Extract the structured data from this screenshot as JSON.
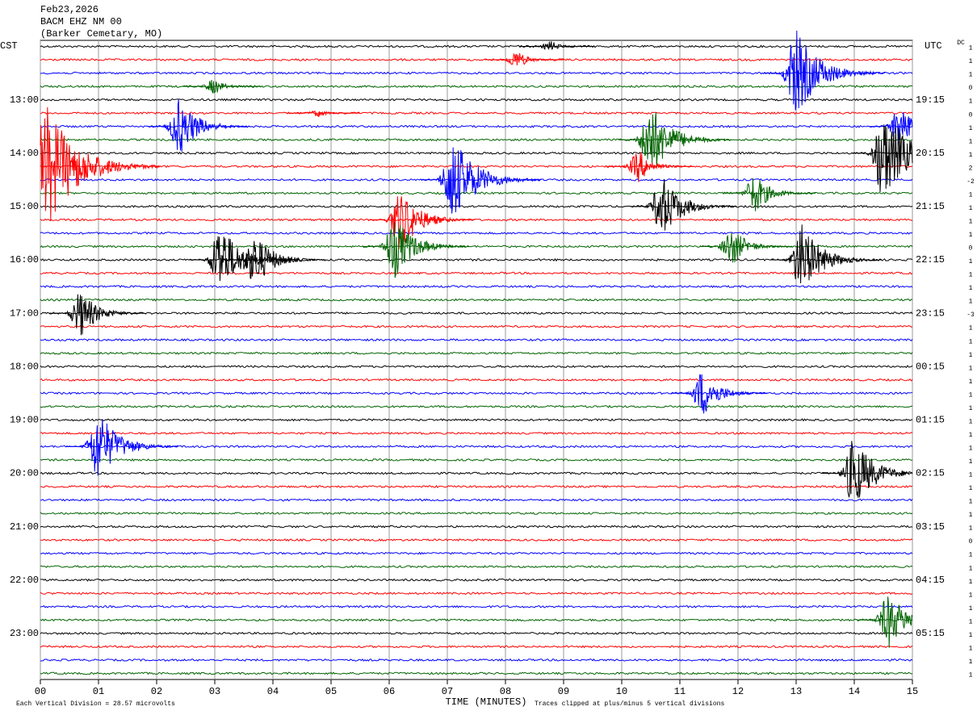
{
  "chart_data": {
    "type": "helicorder",
    "title": [
      "Feb23,2026",
      "BACM EHZ NM 00",
      "(Barker Cemetary, MO)"
    ],
    "left_timezone": "CST",
    "right_timezone": "UTC",
    "dc_header": "DC",
    "trace_colors": [
      "#000000",
      "#ff0000",
      "#0000ff",
      "#006400"
    ],
    "cst_labels": [
      "13:00",
      "14:00",
      "15:00",
      "16:00",
      "17:00",
      "18:00",
      "19:00",
      "20:00",
      "21:00",
      "22:00",
      "23:00"
    ],
    "utc_labels": [
      "19:15",
      "20:15",
      "21:15",
      "22:15",
      "23:15",
      "00:15",
      "01:15",
      "02:15",
      "03:15",
      "04:15",
      "05:15"
    ],
    "dc_offsets": [
      1,
      1,
      1,
      0,
      1,
      0,
      1,
      1,
      1,
      2,
      -2,
      1,
      1,
      1,
      1,
      0,
      1,
      1,
      1,
      1,
      -3,
      1,
      1,
      1,
      1,
      1,
      1,
      1,
      1,
      1,
      1,
      1,
      1,
      1,
      1,
      1,
      1,
      0,
      1,
      1,
      1,
      1,
      1,
      1,
      1,
      1,
      1,
      1
    ],
    "xlim": [
      0,
      15
    ],
    "xticks": [
      {
        "value": 0,
        "label": "00"
      },
      {
        "value": 1,
        "label": "01"
      },
      {
        "value": 2,
        "label": "02"
      },
      {
        "value": 3,
        "label": "03"
      },
      {
        "value": 4,
        "label": "04"
      },
      {
        "value": 5,
        "label": "05"
      },
      {
        "value": 6,
        "label": "06"
      },
      {
        "value": 7,
        "label": "07"
      },
      {
        "value": 8,
        "label": "08"
      },
      {
        "value": 9,
        "label": "09"
      },
      {
        "value": 10,
        "label": "10"
      },
      {
        "value": 11,
        "label": "11"
      },
      {
        "value": 12,
        "label": "12"
      },
      {
        "value": 13,
        "label": "13"
      },
      {
        "value": 14,
        "label": "14"
      },
      {
        "value": 15,
        "label": "15"
      }
    ],
    "x_label": "TIME (MINUTES)",
    "scale_note": "Each Vertical Division =  28.57 microvolts",
    "clip_note": "Traces clipped at plus/minus 5 vertical divisions",
    "events": [
      {
        "trace": 0,
        "minute": 8.8,
        "amplitude": 0.4
      },
      {
        "trace": 1,
        "minute": 8.2,
        "amplitude": 0.7
      },
      {
        "trace": 2,
        "minute": 13,
        "amplitude": 3.3
      },
      {
        "trace": 3,
        "minute": 3,
        "amplitude": 0.6
      },
      {
        "trace": 5,
        "minute": 4.8,
        "amplitude": 0.3
      },
      {
        "trace": 6,
        "minute": 2.4,
        "amplitude": 2.2
      },
      {
        "trace": 6,
        "minute": 14.8,
        "amplitude": 1.8
      },
      {
        "trace": 7,
        "minute": 10.5,
        "amplitude": 2.8
      },
      {
        "trace": 8,
        "minute": 14.5,
        "amplitude": 3.6
      },
      {
        "trace": 9,
        "minute": 0.1,
        "amplitude": 4.8
      },
      {
        "trace": 9,
        "minute": 10.3,
        "amplitude": 1.2
      },
      {
        "trace": 10,
        "minute": 7.1,
        "amplitude": 3.3
      },
      {
        "trace": 11,
        "minute": 12.3,
        "amplitude": 1.5
      },
      {
        "trace": 12,
        "minute": 10.7,
        "amplitude": 2.4
      },
      {
        "trace": 13,
        "minute": 6.2,
        "amplitude": 2.4
      },
      {
        "trace": 15,
        "minute": 6.1,
        "amplitude": 2.4
      },
      {
        "trace": 15,
        "minute": 11.9,
        "amplitude": 1.5
      },
      {
        "trace": 16,
        "minute": 3.1,
        "amplitude": 2.7
      },
      {
        "trace": 16,
        "minute": 3.7,
        "amplitude": 2.1
      },
      {
        "trace": 16,
        "minute": 13.1,
        "amplitude": 2.7
      },
      {
        "trace": 20,
        "minute": 0.7,
        "amplitude": 1.8
      },
      {
        "trace": 26,
        "minute": 11.4,
        "amplitude": 1.8
      },
      {
        "trace": 30,
        "minute": 1,
        "amplitude": 2.7
      },
      {
        "trace": 32,
        "minute": 14,
        "amplitude": 2.7
      },
      {
        "trace": 43,
        "minute": 14.6,
        "amplitude": 2.1
      }
    ]
  }
}
